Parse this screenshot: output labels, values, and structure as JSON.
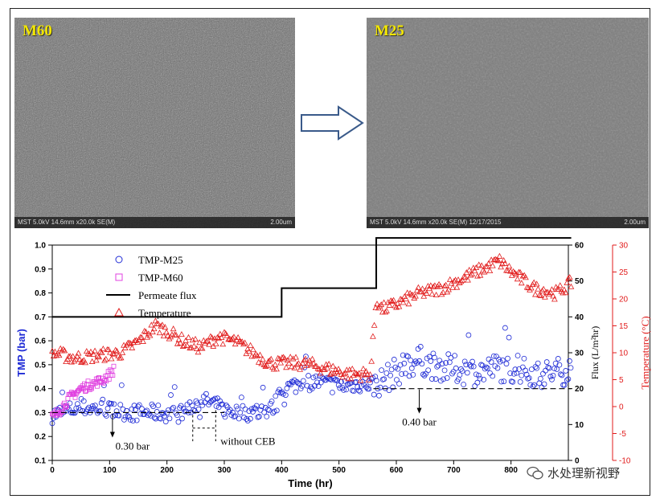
{
  "images": {
    "left": {
      "label": "M60",
      "footer_left": "MST 5.0kV 14.6mm x20.0k SE(M)",
      "footer_right": "2.00um"
    },
    "right": {
      "label": "M25",
      "footer_left": "MST 5.0kV 14.6mm x20.0k SE(M) 12/17/2015",
      "footer_right": "2.00um"
    }
  },
  "watermark": {
    "text": "水处理新视野",
    "icon": "wechat-icon"
  },
  "colors": {
    "tmp_m25": "#1f2bd6",
    "tmp_m60": "#e040e0",
    "flux": "#000000",
    "temperature": "#e11b1b"
  },
  "chart_data": {
    "type": "scatter",
    "xlabel": "Time (hr)",
    "x_ticks": [
      0,
      100,
      200,
      300,
      400,
      500,
      600,
      700,
      800
    ],
    "xlim": [
      0,
      900
    ],
    "y_left": {
      "label": "TMP (bar)",
      "lim": [
        0.1,
        1.0
      ],
      "ticks": [
        "0.1",
        "0.2",
        "0.3",
        "0.4",
        "0.5",
        "0.6",
        "0.7",
        "0.8",
        "0.9",
        "1.0"
      ]
    },
    "y_flux": {
      "label": "Flux (L/m²hr)",
      "lim": [
        0,
        60
      ],
      "ticks": [
        0,
        10,
        20,
        30,
        40,
        50,
        60
      ]
    },
    "y_temp": {
      "label": "Temperature (°C)",
      "lim": [
        -10,
        30
      ],
      "ticks": [
        -10,
        -5,
        0,
        5,
        10,
        15,
        20,
        25,
        30
      ]
    },
    "legend": [
      {
        "name": "TMP-M25",
        "marker": "circle",
        "color": "#1f2bd6"
      },
      {
        "name": "TMP-M60",
        "marker": "square",
        "color": "#e040e0"
      },
      {
        "name": "Permeate flux",
        "marker": "line",
        "color": "#000000"
      },
      {
        "name": "Temperature",
        "marker": "triangle",
        "color": "#e11b1b"
      }
    ],
    "legend_position": "top-left",
    "series": [
      {
        "name": "TMP-M25",
        "axis": "left",
        "x": [
          0,
          30,
          60,
          100,
          140,
          180,
          220,
          245,
          260,
          280,
          300,
          330,
          360,
          385,
          395,
          405,
          430,
          460,
          500,
          540,
          560,
          575,
          600,
          620,
          640,
          660,
          700,
          740,
          780,
          820,
          860,
          905
        ],
        "y": [
          0.29,
          0.31,
          0.32,
          0.31,
          0.3,
          0.3,
          0.29,
          0.33,
          0.35,
          0.34,
          0.31,
          0.3,
          0.3,
          0.32,
          0.36,
          0.4,
          0.42,
          0.43,
          0.41,
          0.42,
          0.42,
          0.43,
          0.47,
          0.5,
          0.52,
          0.5,
          0.48,
          0.47,
          0.49,
          0.47,
          0.46,
          0.48
        ]
      },
      {
        "name": "TMP-M60",
        "axis": "left",
        "x": [
          0,
          10,
          20,
          30,
          40,
          50,
          60,
          70,
          80,
          90,
          100,
          108
        ],
        "y": [
          0.28,
          0.3,
          0.33,
          0.36,
          0.38,
          0.4,
          0.41,
          0.42,
          0.43,
          0.44,
          0.46,
          0.48
        ]
      },
      {
        "name": "Permeate flux",
        "axis": "flux",
        "x": [
          0,
          400,
          400,
          565,
          565,
          905
        ],
        "y": [
          40,
          40,
          48,
          48,
          62,
          62
        ]
      },
      {
        "name": "Temperature",
        "axis": "temp",
        "x": [
          0,
          40,
          80,
          120,
          150,
          180,
          200,
          230,
          260,
          290,
          320,
          350,
          380,
          400,
          440,
          480,
          520,
          555,
          565,
          575,
          600,
          640,
          680,
          720,
          760,
          780,
          800,
          840,
          880,
          905
        ],
        "y": [
          10,
          9,
          9.5,
          10,
          12,
          15,
          14,
          12,
          11,
          13,
          12,
          10,
          8,
          8,
          8,
          7,
          6,
          6,
          20,
          18,
          19,
          21,
          22,
          24,
          26,
          27,
          25,
          22,
          21,
          23
        ]
      }
    ],
    "reference_lines": [
      {
        "y": 0.3,
        "x_from": 0,
        "x_to": 300,
        "label": "0.30 bar",
        "arrow_at_x": 105
      },
      {
        "y": 0.4,
        "x_from": 560,
        "x_to": 905,
        "label": "0.40 bar",
        "arrow_at_x": 640
      }
    ],
    "annotations": [
      {
        "text": "without CEB",
        "x_from": 245,
        "x_to": 285
      }
    ]
  }
}
